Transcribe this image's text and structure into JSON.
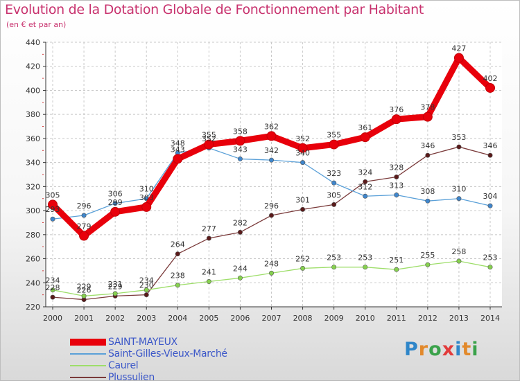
{
  "chart_data": {
    "type": "line",
    "title": "Evolution de la Dotation Globale de Fonctionnement par Habitant",
    "subtitle": "(en € et par an)",
    "x": [
      "2000",
      "2001",
      "2002",
      "2003",
      "2004",
      "2005",
      "2006",
      "2007",
      "2008",
      "2009",
      "2010",
      "2011",
      "2012",
      "2013",
      "2014"
    ],
    "ylim": [
      220,
      440
    ],
    "yticks": [
      220,
      240,
      260,
      280,
      300,
      320,
      340,
      360,
      380,
      400,
      420,
      440
    ],
    "grid": true,
    "legend_position": "bottom-left",
    "series": [
      {
        "name": "SAINT-MAYEUX",
        "color": "#e8000b",
        "marker": "#e8000b",
        "values": [
          305,
          279,
          299,
          303,
          343,
          355,
          358,
          362,
          352,
          355,
          361,
          376,
          378,
          427,
          402
        ]
      },
      {
        "name": "Saint-Gilles-Vieux-Marché",
        "color": "#5aa0d8",
        "marker": "#3f86cc",
        "values": [
          293,
          296,
          306,
          310,
          348,
          352,
          343,
          342,
          340,
          323,
          312,
          313,
          308,
          310,
          304
        ]
      },
      {
        "name": "Caurel",
        "color": "#9ede6a",
        "marker": "#86d04f",
        "values": [
          234,
          229,
          231,
          234,
          238,
          241,
          244,
          248,
          252,
          253,
          253,
          251,
          255,
          258,
          253
        ]
      },
      {
        "name": "Plussulien",
        "color": "#7a3a3a",
        "marker": "#5a1a1a",
        "values": [
          228,
          226,
          229,
          230,
          264,
          277,
          282,
          296,
          301,
          305,
          324,
          328,
          346,
          353,
          346
        ]
      }
    ]
  },
  "logo": {
    "letters": [
      "P",
      "r",
      "o",
      "x",
      "i",
      "t",
      "i"
    ]
  }
}
